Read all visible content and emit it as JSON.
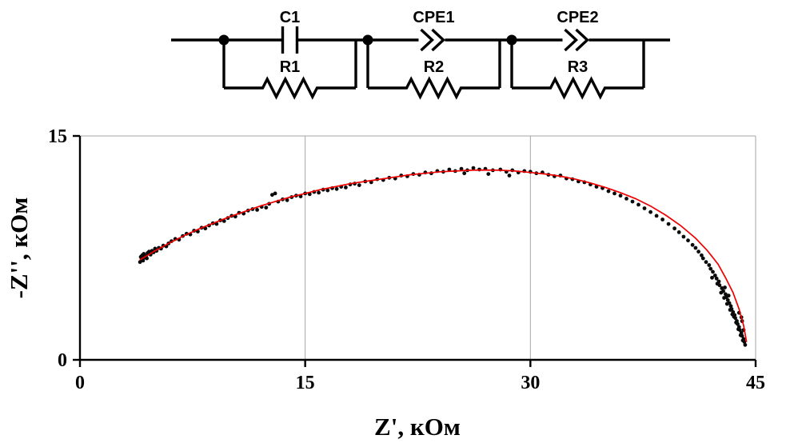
{
  "figure": {
    "background": "#ffffff"
  },
  "circuit": {
    "wire_color": "#000000",
    "blocks": [
      {
        "top_label": "C1",
        "top_type": "capacitor",
        "bottom_label": "R1"
      },
      {
        "top_label": "CPE1",
        "top_type": "cpe",
        "bottom_label": "R2"
      },
      {
        "top_label": "CPE2",
        "top_type": "cpe",
        "bottom_label": "R3"
      }
    ]
  },
  "chart_data": {
    "type": "scatter",
    "title": "",
    "xlabel": "Z', кОм",
    "ylabel": "-Z'', кОм",
    "xlim": [
      0,
      45
    ],
    "ylim": [
      0,
      15
    ],
    "x_ticks": [
      0,
      15,
      30,
      45
    ],
    "x_tick_labels": [
      "0",
      "15",
      "30",
      "45"
    ],
    "y_ticks": [
      0,
      15
    ],
    "y_tick_labels": [
      "0",
      "15"
    ],
    "grid": {
      "vertical": [
        15,
        30,
        45
      ],
      "horizontal": [
        15
      ]
    },
    "legend": "none",
    "series": [
      {
        "name": "experimental",
        "type": "scatter",
        "color": "#0a0a0a",
        "marker_radius": 2.4,
        "points": [
          [
            4.0,
            6.55
          ],
          [
            4.1,
            6.75
          ],
          [
            4.05,
            6.9
          ],
          [
            4.2,
            6.65
          ],
          [
            4.15,
            7.0
          ],
          [
            4.3,
            6.85
          ],
          [
            4.25,
            7.1
          ],
          [
            4.4,
            6.95
          ],
          [
            4.5,
            7.15
          ],
          [
            4.45,
            6.8
          ],
          [
            4.6,
            7.25
          ],
          [
            4.7,
            7.05
          ],
          [
            4.8,
            7.3
          ],
          [
            4.9,
            7.2
          ],
          [
            5.0,
            7.45
          ],
          [
            5.1,
            7.3
          ],
          [
            5.25,
            7.5
          ],
          [
            5.4,
            7.45
          ],
          [
            5.55,
            7.65
          ],
          [
            5.75,
            7.6
          ],
          [
            5.9,
            7.8
          ],
          [
            6.1,
            7.95
          ],
          [
            6.35,
            8.1
          ],
          [
            6.6,
            8.05
          ],
          [
            6.85,
            8.3
          ],
          [
            7.1,
            8.45
          ],
          [
            7.35,
            8.4
          ],
          [
            7.6,
            8.65
          ],
          [
            7.85,
            8.6
          ],
          [
            8.1,
            8.85
          ],
          [
            8.35,
            8.8
          ],
          [
            8.6,
            9.0
          ],
          [
            8.85,
            9.15
          ],
          [
            9.1,
            9.1
          ],
          [
            9.35,
            9.35
          ],
          [
            9.6,
            9.3
          ],
          [
            9.85,
            9.5
          ],
          [
            10.1,
            9.65
          ],
          [
            10.35,
            9.6
          ],
          [
            10.6,
            9.85
          ],
          [
            10.9,
            9.8
          ],
          [
            11.2,
            10.0
          ],
          [
            11.5,
            10.1
          ],
          [
            11.8,
            10.05
          ],
          [
            12.1,
            10.25
          ],
          [
            12.4,
            10.2
          ],
          [
            12.6,
            10.45
          ],
          [
            12.8,
            11.05
          ],
          [
            13.0,
            11.15
          ],
          [
            13.2,
            10.6
          ],
          [
            13.5,
            10.75
          ],
          [
            13.8,
            10.7
          ],
          [
            14.1,
            10.9
          ],
          [
            14.4,
            11.0
          ],
          [
            14.7,
            10.95
          ],
          [
            15.0,
            11.15
          ],
          [
            15.3,
            11.1
          ],
          [
            15.6,
            11.25
          ],
          [
            15.9,
            11.2
          ],
          [
            16.2,
            11.4
          ],
          [
            16.5,
            11.35
          ],
          [
            16.8,
            11.5
          ],
          [
            17.1,
            11.45
          ],
          [
            17.4,
            11.6
          ],
          [
            17.7,
            11.55
          ],
          [
            18.0,
            11.75
          ],
          [
            18.3,
            11.8
          ],
          [
            18.6,
            11.7
          ],
          [
            19.0,
            11.95
          ],
          [
            19.4,
            11.9
          ],
          [
            19.8,
            12.1
          ],
          [
            20.2,
            12.05
          ],
          [
            20.6,
            12.2
          ],
          [
            21.0,
            12.15
          ],
          [
            21.4,
            12.35
          ],
          [
            21.8,
            12.3
          ],
          [
            22.2,
            12.45
          ],
          [
            22.6,
            12.4
          ],
          [
            23.0,
            12.55
          ],
          [
            23.4,
            12.5
          ],
          [
            23.8,
            12.65
          ],
          [
            24.2,
            12.6
          ],
          [
            24.6,
            12.75
          ],
          [
            25.0,
            12.65
          ],
          [
            25.4,
            12.8
          ],
          [
            25.6,
            12.5
          ],
          [
            25.8,
            12.7
          ],
          [
            26.2,
            12.85
          ],
          [
            26.6,
            12.75
          ],
          [
            27.0,
            12.8
          ],
          [
            27.2,
            12.45
          ],
          [
            27.5,
            12.7
          ],
          [
            28.0,
            12.75
          ],
          [
            28.4,
            12.6
          ],
          [
            28.6,
            12.35
          ],
          [
            28.8,
            12.7
          ],
          [
            29.2,
            12.55
          ],
          [
            29.6,
            12.65
          ],
          [
            30.0,
            12.6
          ],
          [
            30.4,
            12.5
          ],
          [
            30.8,
            12.55
          ],
          [
            31.2,
            12.4
          ],
          [
            31.6,
            12.3
          ],
          [
            32.0,
            12.35
          ],
          [
            32.4,
            12.15
          ],
          [
            32.8,
            12.1
          ],
          [
            33.2,
            11.95
          ],
          [
            33.6,
            11.9
          ],
          [
            34.0,
            11.75
          ],
          [
            34.4,
            11.6
          ],
          [
            34.8,
            11.5
          ],
          [
            35.2,
            11.3
          ],
          [
            35.6,
            11.15
          ],
          [
            36.0,
            11.0
          ],
          [
            36.4,
            10.8
          ],
          [
            36.8,
            10.6
          ],
          [
            37.2,
            10.4
          ],
          [
            37.6,
            10.15
          ],
          [
            38.0,
            9.9
          ],
          [
            38.4,
            9.65
          ],
          [
            38.8,
            9.4
          ],
          [
            39.2,
            9.1
          ],
          [
            39.6,
            8.8
          ],
          [
            39.9,
            8.55
          ],
          [
            40.2,
            8.25
          ],
          [
            40.5,
            8.0
          ],
          [
            40.8,
            7.7
          ],
          [
            41.0,
            7.5
          ],
          [
            41.2,
            7.25
          ],
          [
            41.4,
            7.0
          ],
          [
            41.5,
            6.8
          ],
          [
            41.7,
            6.55
          ],
          [
            41.9,
            6.35
          ],
          [
            42.0,
            6.1
          ],
          [
            42.1,
            5.5
          ],
          [
            42.15,
            5.9
          ],
          [
            42.3,
            5.65
          ],
          [
            42.4,
            5.45
          ],
          [
            42.45,
            5.1
          ],
          [
            42.55,
            5.25
          ],
          [
            42.6,
            5.0
          ],
          [
            42.7,
            4.5
          ],
          [
            42.75,
            4.8
          ],
          [
            42.85,
            4.6
          ],
          [
            42.9,
            4.15
          ],
          [
            42.95,
            4.85
          ],
          [
            43.0,
            4.4
          ],
          [
            43.05,
            4.2
          ],
          [
            43.1,
            3.75
          ],
          [
            43.15,
            4.0
          ],
          [
            43.2,
            4.3
          ],
          [
            43.25,
            3.8
          ],
          [
            43.3,
            3.35
          ],
          [
            43.35,
            3.6
          ],
          [
            43.4,
            3.4
          ],
          [
            43.45,
            3.05
          ],
          [
            43.5,
            3.2
          ],
          [
            43.55,
            2.9
          ],
          [
            43.6,
            3.0
          ],
          [
            43.65,
            2.8
          ],
          [
            43.7,
            2.5
          ],
          [
            43.75,
            2.6
          ],
          [
            43.8,
            2.4
          ],
          [
            43.85,
            2.05
          ],
          [
            43.9,
            2.2
          ],
          [
            43.9,
            3.15
          ],
          [
            43.95,
            2.0
          ],
          [
            44.0,
            1.65
          ],
          [
            44.05,
            1.8
          ],
          [
            44.05,
            2.85
          ],
          [
            44.1,
            1.6
          ],
          [
            44.1,
            2.6
          ],
          [
            44.15,
            1.3
          ],
          [
            44.2,
            1.4
          ],
          [
            44.2,
            2.0
          ],
          [
            44.25,
            1.2
          ],
          [
            44.3,
            1.0
          ]
        ]
      },
      {
        "name": "fit",
        "type": "line",
        "color": "#ee0000",
        "width": 1.7,
        "points": [
          [
            4,
            6.7
          ],
          [
            5,
            7.3
          ],
          [
            6,
            7.85
          ],
          [
            7,
            8.35
          ],
          [
            8,
            8.8
          ],
          [
            9,
            9.2
          ],
          [
            10,
            9.6
          ],
          [
            11,
            9.95
          ],
          [
            12,
            10.3
          ],
          [
            13,
            10.6
          ],
          [
            14,
            10.9
          ],
          [
            15,
            11.15
          ],
          [
            16,
            11.4
          ],
          [
            17,
            11.6
          ],
          [
            18,
            11.8
          ],
          [
            19,
            11.95
          ],
          [
            20,
            12.1
          ],
          [
            21,
            12.25
          ],
          [
            22,
            12.4
          ],
          [
            23,
            12.5
          ],
          [
            24,
            12.6
          ],
          [
            25,
            12.65
          ],
          [
            26,
            12.7
          ],
          [
            27,
            12.72
          ],
          [
            28,
            12.7
          ],
          [
            29,
            12.65
          ],
          [
            30,
            12.55
          ],
          [
            31,
            12.45
          ],
          [
            32,
            12.3
          ],
          [
            33,
            12.1
          ],
          [
            34,
            11.85
          ],
          [
            35,
            11.55
          ],
          [
            36,
            11.2
          ],
          [
            37,
            10.8
          ],
          [
            38,
            10.3
          ],
          [
            39,
            9.7
          ],
          [
            40,
            9.0
          ],
          [
            41,
            8.15
          ],
          [
            41.8,
            7.3
          ],
          [
            42.5,
            6.4
          ],
          [
            43.0,
            5.5
          ],
          [
            43.5,
            4.5
          ],
          [
            43.9,
            3.4
          ],
          [
            44.2,
            2.3
          ],
          [
            44.4,
            1.2
          ]
        ]
      }
    ]
  }
}
